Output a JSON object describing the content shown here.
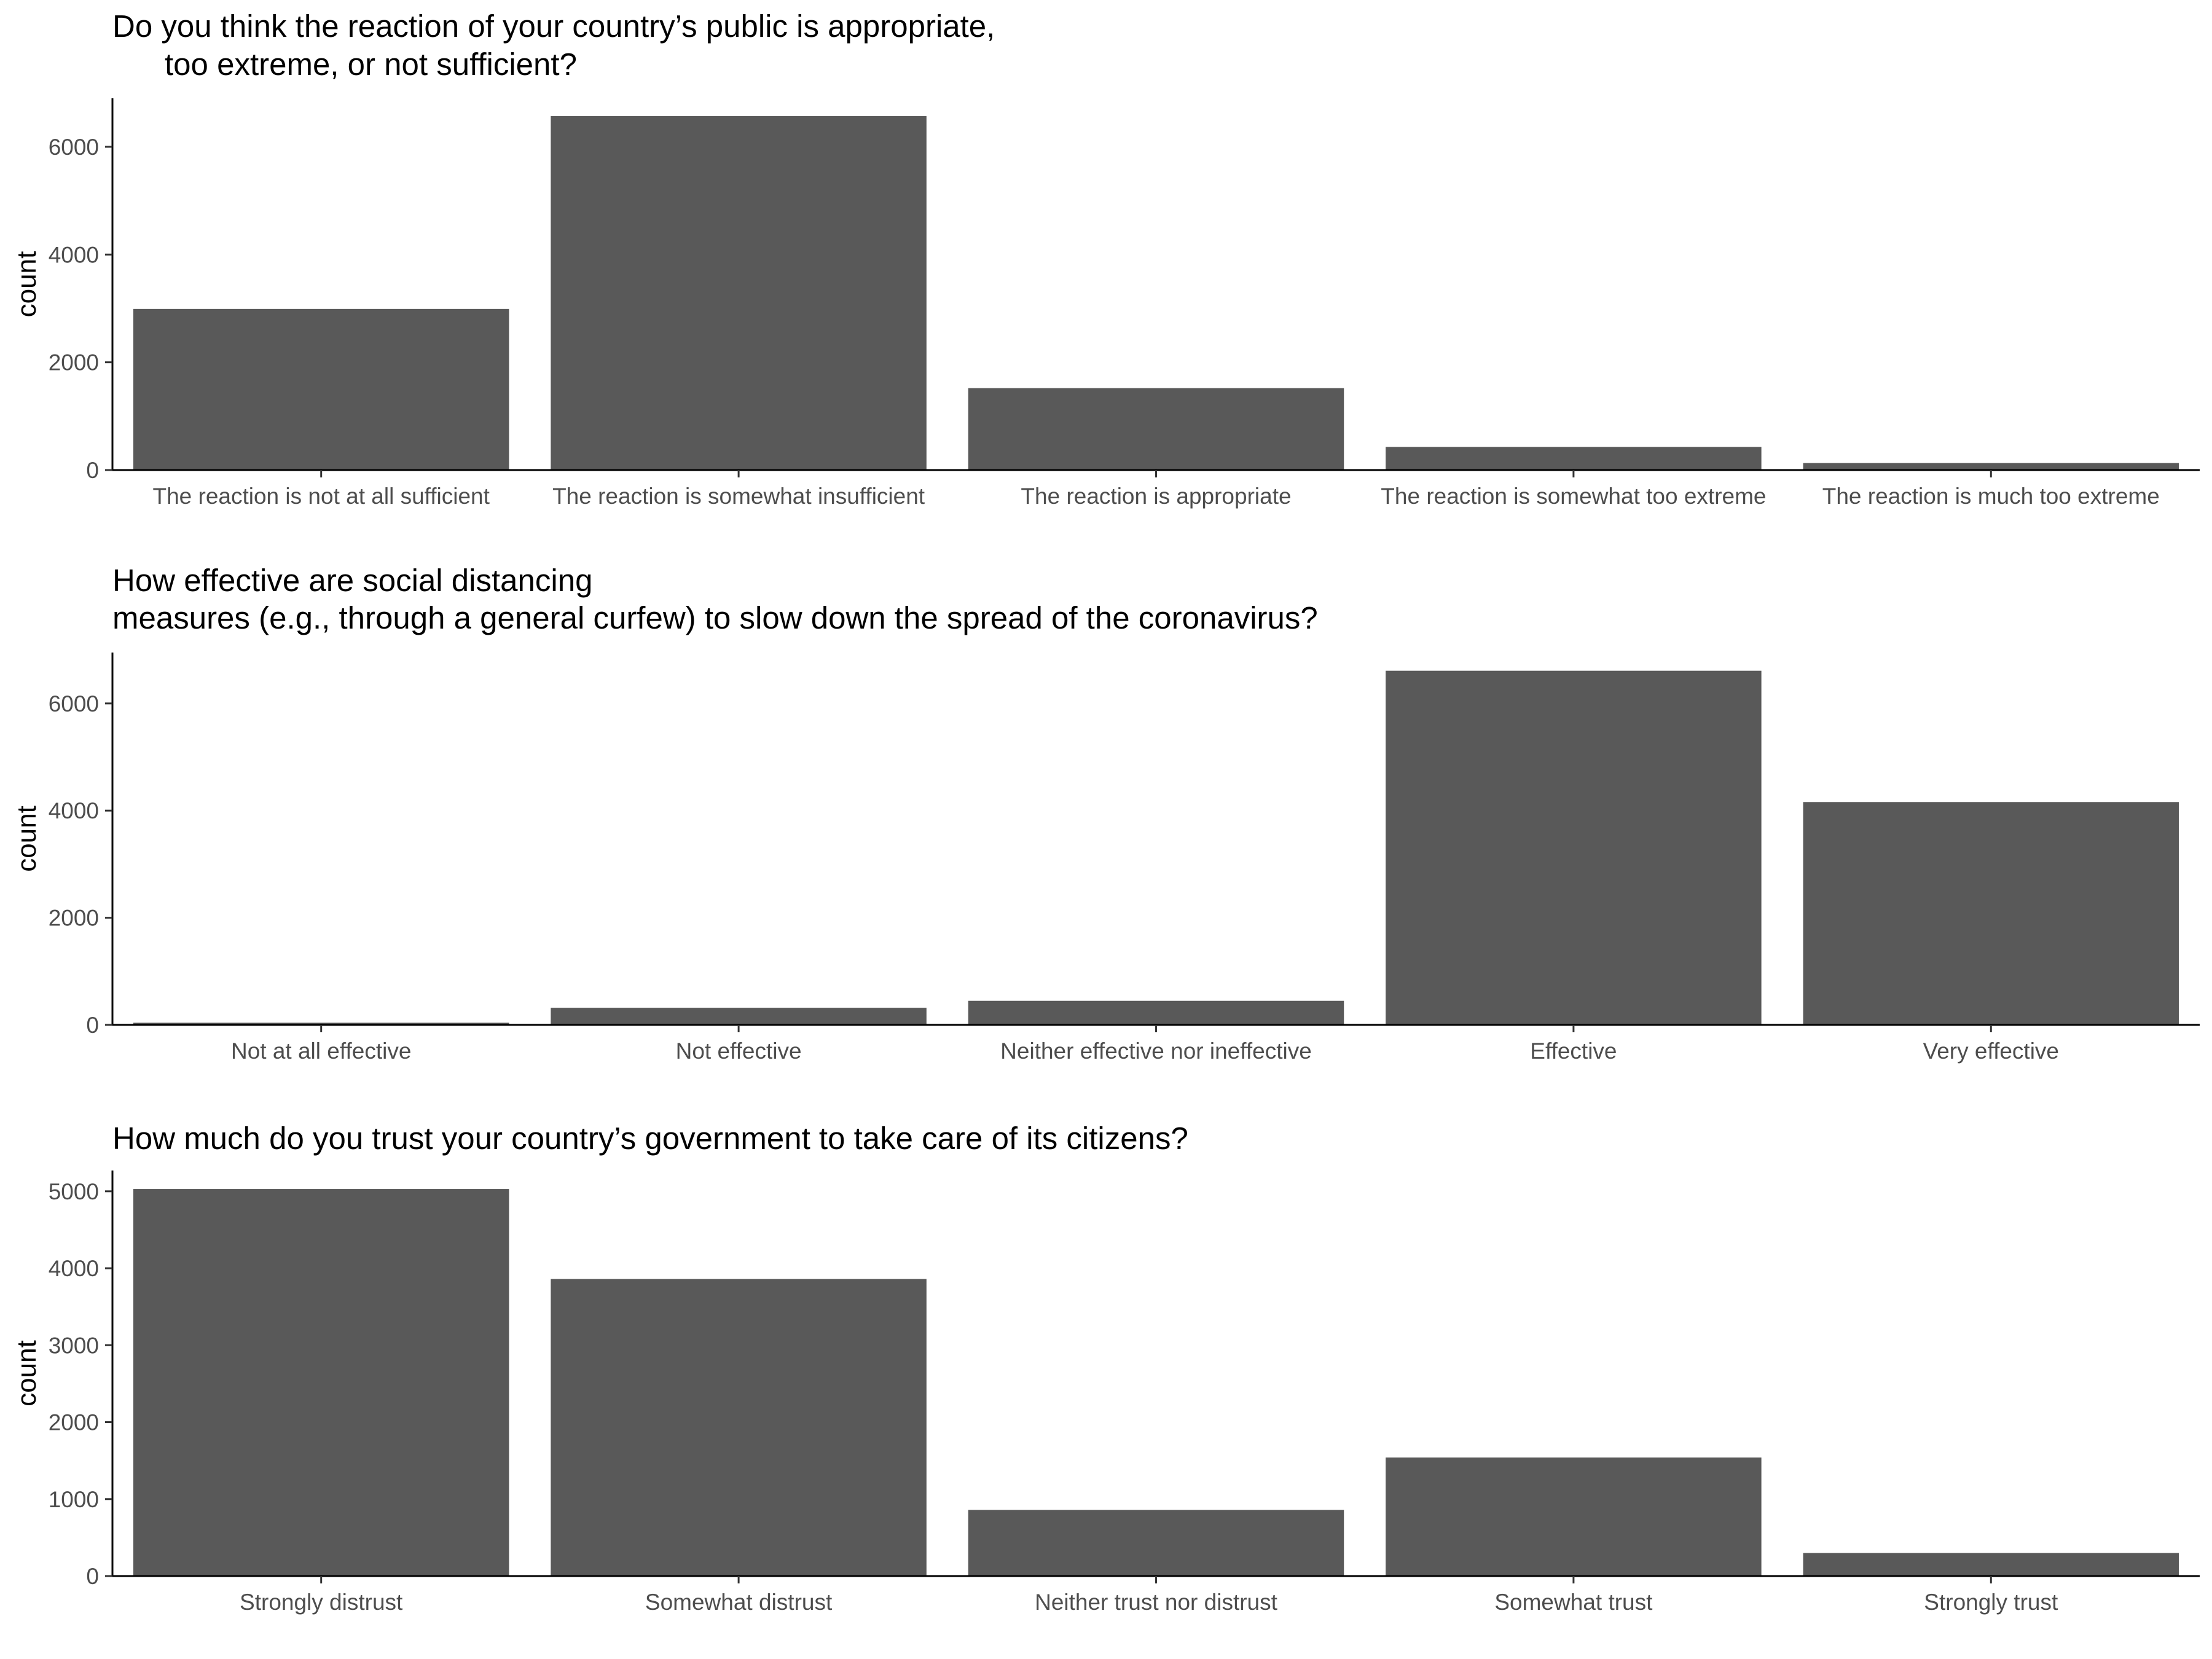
{
  "bar_color": "#595959",
  "chart_data": [
    {
      "type": "bar",
      "title_lines": [
        "Do you think the reaction of your country’s public is appropriate,",
        "      too extreme, or not sufficient?"
      ],
      "xlabel": "",
      "ylabel": "count",
      "ylim": [
        0,
        6900
      ],
      "yticks": [
        0,
        2000,
        4000,
        6000
      ],
      "categories": [
        "The reaction is not at all sufficient",
        "The reaction is somewhat insufficient",
        "The reaction is appropriate",
        "The reaction is somewhat too extreme",
        "The reaction is much too extreme"
      ],
      "values": [
        2990,
        6570,
        1520,
        430,
        130
      ]
    },
    {
      "type": "bar",
      "title_lines": [
        "How effective are social distancing",
        "measures (e.g., through a general curfew) to slow down the spread of the coronavirus?"
      ],
      "xlabel": "",
      "ylabel": "count",
      "ylim": [
        0,
        6950
      ],
      "yticks": [
        0,
        2000,
        4000,
        6000
      ],
      "categories": [
        "Not at all effective",
        "Not effective",
        "Neither effective nor ineffective",
        "Effective",
        "Very effective"
      ],
      "values": [
        40,
        320,
        450,
        6610,
        4160
      ]
    },
    {
      "type": "bar",
      "title_lines": [
        "How much do you trust your country’s government to take care of its citizens?"
      ],
      "xlabel": "",
      "ylabel": "count",
      "ylim": [
        0,
        5270
      ],
      "yticks": [
        0,
        1000,
        2000,
        3000,
        4000,
        5000
      ],
      "categories": [
        "Strongly distrust",
        "Somewhat distrust",
        "Neither trust nor distrust",
        "Somewhat trust",
        "Strongly trust"
      ],
      "values": [
        5030,
        3860,
        860,
        1540,
        300
      ]
    }
  ]
}
